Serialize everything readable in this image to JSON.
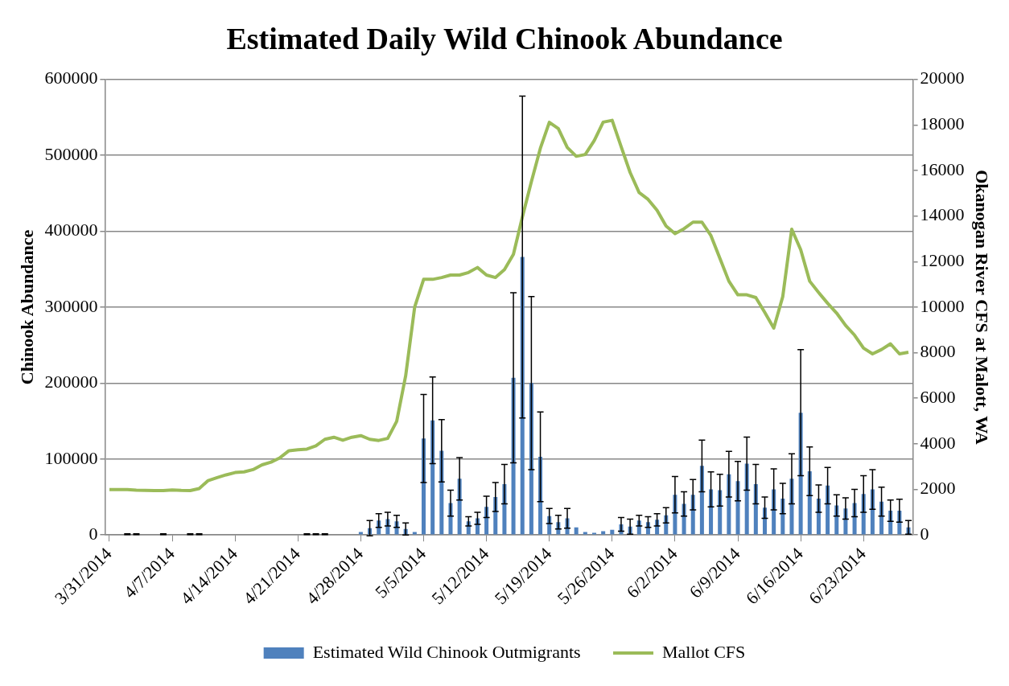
{
  "chart_data": {
    "type": "bar",
    "title": "Estimated Daily Wild Chinook Abundance",
    "ylabel": "Chinook Abundance",
    "y2label": "Okanogan River CFS at Malott, WA",
    "categories": [
      "3/31/2014",
      null,
      null,
      null,
      null,
      null,
      null,
      "4/7/2014",
      null,
      null,
      null,
      null,
      null,
      null,
      "4/14/2014",
      null,
      null,
      null,
      null,
      null,
      null,
      "4/21/2014",
      null,
      null,
      null,
      null,
      null,
      null,
      "4/28/2014",
      null,
      null,
      null,
      null,
      null,
      null,
      "5/5/2014",
      null,
      null,
      null,
      null,
      null,
      null,
      "5/12/2014",
      null,
      null,
      null,
      null,
      null,
      null,
      "5/19/2014",
      null,
      null,
      null,
      null,
      null,
      null,
      "5/26/2014",
      null,
      null,
      null,
      null,
      null,
      null,
      "6/2/2014",
      null,
      null,
      null,
      null,
      null,
      null,
      "6/9/2014",
      null,
      null,
      null,
      null,
      null,
      null,
      "6/16/2014",
      null,
      null,
      null,
      null,
      null,
      null,
      "6/23/2014",
      null,
      null,
      null,
      null,
      null
    ],
    "series": [
      {
        "name": "Estimated Wild Chinook Outmigrants",
        "type": "bar",
        "color": "#4f81bd",
        "values": [
          0,
          0,
          1000,
          1000,
          0,
          0,
          1000,
          0,
          0,
          1000,
          1000,
          0,
          0,
          0,
          0,
          0,
          0,
          0,
          0,
          0,
          0,
          0,
          1000,
          1000,
          1000,
          0,
          0,
          0,
          4000,
          9000,
          19000,
          21000,
          18000,
          8000,
          4000,
          127000,
          151000,
          111000,
          42000,
          74000,
          18000,
          22000,
          37000,
          50000,
          67000,
          207000,
          366000,
          200000,
          103000,
          25000,
          17000,
          22000,
          10000,
          4000,
          3000,
          5000,
          7000,
          14000,
          11000,
          19000,
          17000,
          20000,
          26000,
          53000,
          41000,
          53000,
          91000,
          60000,
          59000,
          80000,
          71000,
          94000,
          67000,
          36000,
          60000,
          48000,
          74000,
          161000,
          84000,
          48000,
          65000,
          39000,
          35000,
          42000,
          54000,
          60000,
          44000,
          32000,
          32000,
          10000
        ],
        "errors": [
          null,
          null,
          500,
          500,
          null,
          null,
          500,
          null,
          null,
          500,
          500,
          null,
          null,
          null,
          null,
          null,
          null,
          null,
          null,
          null,
          null,
          null,
          500,
          500,
          500,
          null,
          null,
          null,
          null,
          10000,
          9000,
          9000,
          8000,
          8000,
          null,
          58000,
          57000,
          41000,
          17000,
          28000,
          6000,
          8000,
          14000,
          19000,
          26000,
          112000,
          212000,
          114000,
          59000,
          10000,
          9000,
          13000,
          null,
          null,
          null,
          null,
          null,
          9000,
          10000,
          7000,
          7000,
          8000,
          10000,
          24000,
          16000,
          20000,
          34000,
          23000,
          21000,
          30000,
          26000,
          35000,
          26000,
          14000,
          27000,
          20000,
          33000,
          83000,
          32000,
          18000,
          24000,
          14000,
          14000,
          18000,
          24000,
          26000,
          19000,
          14000,
          15000,
          9000
        ]
      },
      {
        "name": "Mallot CFS",
        "type": "line",
        "axis": "y2",
        "color": "#9bbb59",
        "values": [
          1990,
          1990,
          1990,
          1970,
          1960,
          1950,
          1950,
          1980,
          1960,
          1950,
          2040,
          2390,
          2520,
          2640,
          2740,
          2770,
          2870,
          3080,
          3200,
          3390,
          3700,
          3740,
          3770,
          3910,
          4200,
          4290,
          4160,
          4290,
          4360,
          4200,
          4150,
          4240,
          4990,
          6990,
          10000,
          11220,
          11220,
          11300,
          11410,
          11410,
          11520,
          11740,
          11410,
          11300,
          11650,
          12320,
          13960,
          15500,
          16970,
          18110,
          17840,
          17010,
          16620,
          16700,
          17310,
          18120,
          18200,
          17040,
          15910,
          15030,
          14730,
          14250,
          13560,
          13230,
          13440,
          13730,
          13730,
          13140,
          12140,
          11140,
          10540,
          10540,
          10420,
          9770,
          9080,
          10460,
          13420,
          12520,
          11140,
          10640,
          10170,
          9740,
          9200,
          8770,
          8200,
          7950,
          8140,
          8390,
          7950,
          8020
        ]
      }
    ],
    "ylim": [
      0,
      600000
    ],
    "yticks": [
      0,
      100000,
      200000,
      300000,
      400000,
      500000,
      600000
    ],
    "y2lim": [
      0,
      20000
    ],
    "y2ticks": [
      0,
      2000,
      4000,
      6000,
      8000,
      10000,
      12000,
      14000,
      16000,
      18000,
      20000
    ],
    "grid": "y",
    "legend": "bottom",
    "marker": "none",
    "line_style": "solid"
  }
}
